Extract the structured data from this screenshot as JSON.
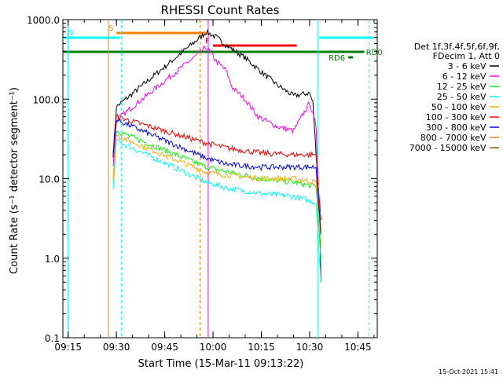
{
  "chart_data": {
    "type": "line",
    "title": "RHESSI Count Rates",
    "xlabel": "Start Time (15-Mar-11 09:13:22)",
    "ylabel": "Count Rate (s⁻¹ detector segment⁻¹)",
    "y_scale": "log",
    "ylim": [
      0.1,
      1000
    ],
    "xlim": [
      "09:13:22",
      "10:51:00"
    ],
    "x_ticks": [
      "09:15",
      "09:30",
      "09:45",
      "10:00",
      "10:15",
      "10:30",
      "10:45"
    ],
    "y_ticks": [
      "0.1",
      "1.0",
      "10.0",
      "100.0",
      "1000.0"
    ],
    "series": [
      {
        "name": "3 - 6 keV",
        "color": "#000000",
        "x": [
          "09:29",
          "09:30",
          "09:58",
          "10:01",
          "10:05",
          "10:10",
          "10:15",
          "10:20",
          "10:25",
          "10:30",
          "10:31",
          "10:33",
          "10:33.5"
        ],
        "y": [
          20,
          80,
          700,
          600,
          450,
          330,
          220,
          150,
          110,
          120,
          90,
          5,
          0.5
        ]
      },
      {
        "name": "6 - 12 keV",
        "color": "#ff00ff",
        "x": [
          "09:29",
          "09:30",
          "09:58",
          "10:01",
          "10:04",
          "10:06",
          "10:10",
          "10:14",
          "10:20",
          "10:25",
          "10:30",
          "10:32",
          "10:33"
        ],
        "y": [
          15,
          55,
          450,
          300,
          230,
          140,
          100,
          60,
          45,
          40,
          90,
          45,
          4
        ]
      },
      {
        "name": "12 - 25 keV",
        "color": "#00ff00",
        "x": [
          "09:29",
          "09:30",
          "09:58",
          "10:05",
          "10:15",
          "10:25",
          "10:32",
          "10:33.5"
        ],
        "y": [
          10,
          40,
          14,
          12,
          10,
          9,
          8,
          1
        ]
      },
      {
        "name": "25 - 50 keV",
        "color": "#00ffff",
        "x": [
          "09:29",
          "09:30",
          "09:58",
          "10:05",
          "10:15",
          "10:25",
          "10:32",
          "10:33.5"
        ],
        "y": [
          7,
          30,
          9,
          7.5,
          6.5,
          6,
          5,
          0.5
        ]
      },
      {
        "name": "50 - 100 keV",
        "color": "#ffaa00",
        "x": [
          "09:29",
          "09:30",
          "09:58",
          "10:05",
          "10:15",
          "10:25",
          "10:32",
          "10:33.5"
        ],
        "y": [
          9,
          35,
          12,
          11,
          10,
          10,
          9,
          1.5
        ]
      },
      {
        "name": "100 - 300 keV",
        "color": "#ff0000",
        "x": [
          "09:29",
          "09:30",
          "09:58",
          "10:05",
          "10:15",
          "10:25",
          "10:32",
          "10:33.5"
        ],
        "y": [
          22,
          60,
          28,
          24,
          21,
          20,
          20,
          3
        ]
      },
      {
        "name": "300 - 800 keV",
        "color": "#0000ff",
        "x": [
          "09:29",
          "09:30",
          "09:58",
          "10:05",
          "10:15",
          "10:25",
          "10:32",
          "10:33.5"
        ],
        "y": [
          20,
          55,
          18,
          15,
          14,
          14,
          14,
          2
        ]
      },
      {
        "name": "800 - 7000 keV",
        "color": "#ff8000",
        "x": [],
        "y": []
      },
      {
        "name": "7000 - 15000 keV",
        "color": "#806000",
        "x": [],
        "y": []
      }
    ],
    "legend_position": "right",
    "legend_header": [
      "Det 1f,3f,4f,5f,6f,9f,",
      "FDecim 1, Att 0"
    ],
    "flag_labels": {
      "saa": "S",
      "night": "N",
      "fr": "F",
      "rd0": "RD0",
      "rd6": "RD6"
    },
    "grid": false,
    "timestamp": "15-Oct-2021 15:41"
  }
}
